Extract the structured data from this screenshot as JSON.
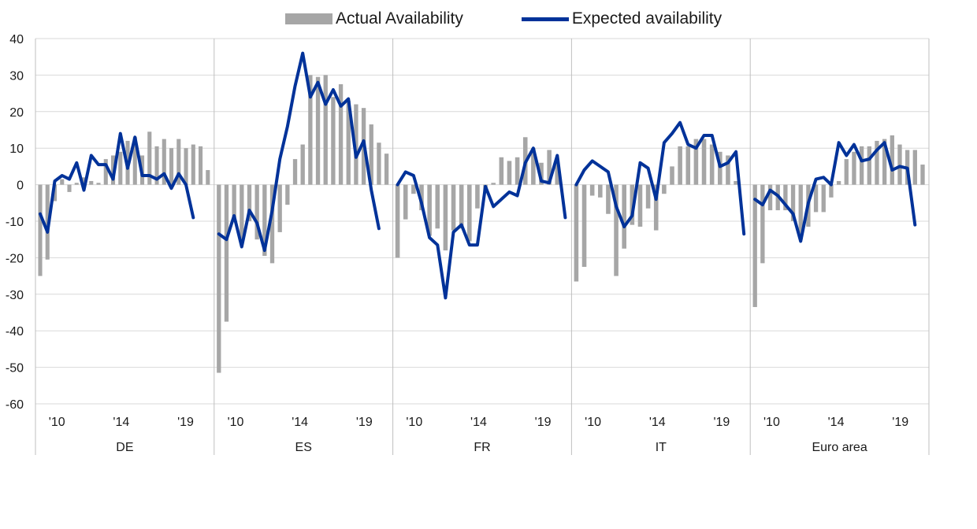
{
  "chart_data": {
    "type": "bar",
    "series": [
      {
        "name": "Actual Availability",
        "kind": "bar",
        "color": "#a6a6a6"
      },
      {
        "name": "Expected availability",
        "kind": "line",
        "color": "#003299"
      }
    ],
    "ylim": [
      -60,
      40
    ],
    "yticks": [
      "40",
      "30",
      "20",
      "10",
      "0",
      "-10",
      "-20",
      "-30",
      "-40",
      "-50",
      "-60"
    ],
    "grid": true,
    "legend_position": "top",
    "panels": [
      {
        "label": "DE",
        "tick_labels": [
          "'10",
          "'14",
          "'19"
        ],
        "actual": [
          -25,
          -20.5,
          -4.5,
          1.5,
          -2,
          0.5,
          2,
          1,
          0.5,
          7,
          8,
          9,
          12,
          13,
          8,
          14.5,
          10.5,
          12.5,
          10,
          12.5,
          10,
          11,
          10.5,
          4
        ],
        "expected": [
          -8,
          -13,
          1,
          2.5,
          1.5,
          6,
          -1.5,
          8,
          5.5,
          5.5,
          1.5,
          14,
          4.5,
          13,
          2.5,
          2.5,
          1.5,
          3,
          -1,
          3,
          0,
          -9
        ]
      },
      {
        "label": "ES",
        "tick_labels": [
          "'10",
          "'14",
          "'19"
        ],
        "actual": [
          -51.5,
          -37.5,
          -9,
          -16,
          -10,
          -15,
          -19.5,
          -21.5,
          -13,
          -5.5,
          7,
          11,
          30,
          29.5,
          30,
          24,
          27.5,
          23,
          22,
          21,
          16.5,
          11.5,
          8.5
        ],
        "expected": [
          -13.5,
          -15,
          -8.5,
          -17,
          -7,
          -10.5,
          -18,
          -7,
          7,
          16,
          27,
          36,
          24,
          28,
          22,
          26,
          21.5,
          23.5,
          7.5,
          12,
          -1.5,
          -12
        ]
      },
      {
        "label": "FR",
        "tick_labels": [
          "'10",
          "'14",
          "'19"
        ],
        "actual": [
          -20,
          -9.5,
          -2.5,
          -7,
          -14,
          -12,
          -18,
          -12.5,
          -12,
          -15.5,
          -6.5,
          -2,
          0.5,
          7.5,
          6.5,
          7.5,
          13,
          10,
          6,
          9.5,
          6.5
        ],
        "expected": [
          0,
          3.5,
          2.5,
          -5,
          -14.5,
          -16.5,
          -31,
          -13,
          -11,
          -16.5,
          -16.5,
          -0.5,
          -6,
          -4,
          -2,
          -3,
          6,
          10,
          1,
          0.5,
          8,
          -9
        ]
      },
      {
        "label": "IT",
        "tick_labels": [
          "'10",
          "'14",
          "'19"
        ],
        "actual": [
          -26.5,
          -22.5,
          -3,
          -3.5,
          -8,
          -25,
          -17.5,
          -11,
          -11.5,
          -6.5,
          -12.5,
          -2.5,
          5,
          10.5,
          10.5,
          12.5,
          12.5,
          11,
          9,
          8,
          1
        ],
        "expected": [
          0,
          4,
          6.5,
          5,
          3.5,
          -6,
          -11.5,
          -8.5,
          6,
          4.5,
          -4,
          11.5,
          14,
          17,
          11,
          10,
          13.5,
          13.5,
          5,
          6,
          9,
          -13.5
        ]
      },
      {
        "label": "Euro area",
        "tick_labels": [
          "'10",
          "'14",
          "'19"
        ],
        "actual": [
          -33.5,
          -21.5,
          -7,
          -7,
          -7,
          -10,
          -15,
          -11.5,
          -7.5,
          -7.5,
          -3.5,
          1,
          7,
          9,
          10.5,
          10.5,
          12,
          12.5,
          13.5,
          11,
          9.5,
          9.5,
          5.5
        ],
        "expected": [
          -4,
          -5.5,
          -1.5,
          -3,
          -5.5,
          -8,
          -15.5,
          -5,
          1.5,
          2,
          0,
          11.5,
          8,
          11,
          6.5,
          7,
          9.5,
          11.5,
          4,
          5,
          4.5,
          -11
        ]
      }
    ]
  }
}
